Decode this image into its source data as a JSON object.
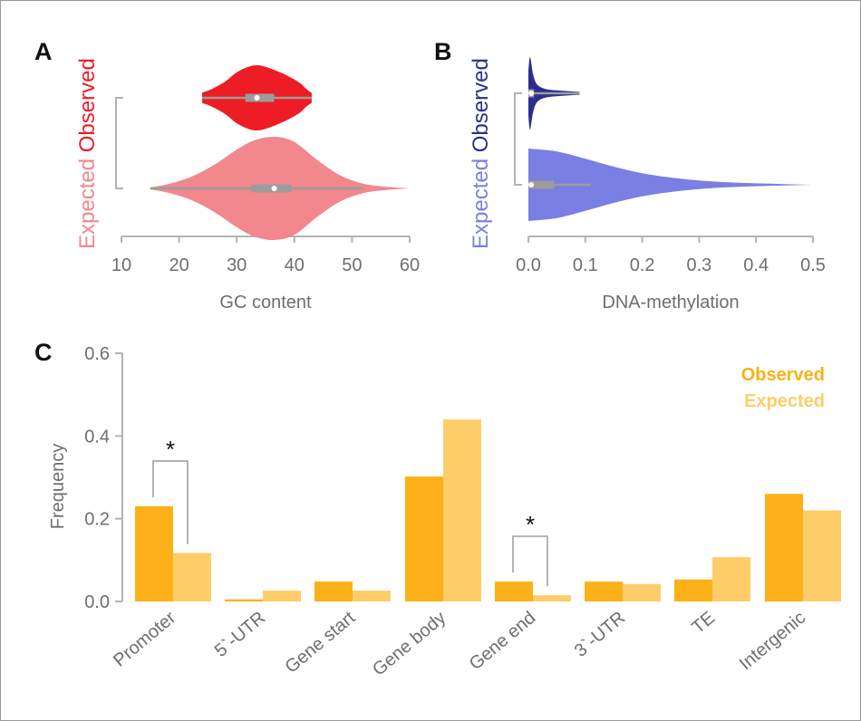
{
  "panels": {
    "a": {
      "letter": "A"
    },
    "b": {
      "letter": "B"
    },
    "c": {
      "letter": "C"
    }
  },
  "colors": {
    "observed_gc": "#ee1c25",
    "expected_gc": "#f2878e",
    "observed_meth": "#2b2f8c",
    "expected_meth": "#7a7fe3",
    "observed_bar": "#fbb117",
    "expected_bar": "#fecd6a",
    "axis": "#b3b3b3",
    "box": "#9c9c9c"
  },
  "chart_data": [
    {
      "type": "violin",
      "panel": "A",
      "xlabel": "GC content",
      "xlim": [
        10,
        60
      ],
      "xticks": [
        10,
        20,
        30,
        40,
        50,
        60
      ],
      "series": [
        {
          "name": "Observed",
          "min": 24,
          "q1": 31.5,
          "median": 33.5,
          "q3": 36.5,
          "max": 43,
          "color": "#ee1c25",
          "density": [
            [
              24,
              0.16
            ],
            [
              25,
              0.22
            ],
            [
              26,
              0.3
            ],
            [
              28,
              0.5
            ],
            [
              30,
              0.78
            ],
            [
              32,
              0.95
            ],
            [
              33.5,
              1.0
            ],
            [
              35,
              0.95
            ],
            [
              37,
              0.82
            ],
            [
              39,
              0.66
            ],
            [
              41,
              0.45
            ],
            [
              42,
              0.28
            ],
            [
              43,
              0.15
            ]
          ]
        },
        {
          "name": "Expected",
          "min": 15,
          "q1": 32.5,
          "median": 36.5,
          "q3": 39.5,
          "max": 52,
          "color": "#f2878e",
          "density": [
            [
              15,
              0.02
            ],
            [
              18,
              0.08
            ],
            [
              22,
              0.22
            ],
            [
              26,
              0.45
            ],
            [
              30,
              0.75
            ],
            [
              33,
              0.93
            ],
            [
              36.5,
              1.0
            ],
            [
              40,
              0.9
            ],
            [
              44,
              0.55
            ],
            [
              48,
              0.25
            ],
            [
              52,
              0.09
            ],
            [
              56,
              0.03
            ],
            [
              60,
              0.0
            ]
          ]
        }
      ]
    },
    {
      "type": "violin",
      "panel": "B",
      "xlabel": "DNA-methylation",
      "xlim": [
        0.0,
        0.5
      ],
      "xticks": [
        "0.0",
        "0.1",
        "0.2",
        "0.3",
        "0.4",
        "0.5"
      ],
      "series": [
        {
          "name": "Observed",
          "min": 0.0,
          "q1": 0.0,
          "median": 0.005,
          "q3": 0.01,
          "max": 0.09,
          "color": "#2b2f8c",
          "density": [
            [
              0.0,
              0.62
            ],
            [
              0.003,
              1.0
            ],
            [
              0.008,
              0.55
            ],
            [
              0.015,
              0.25
            ],
            [
              0.03,
              0.12
            ],
            [
              0.05,
              0.08
            ],
            [
              0.07,
              0.06
            ],
            [
              0.09,
              0.04
            ]
          ]
        },
        {
          "name": "Expected",
          "min": 0.0,
          "q1": 0.0,
          "median": 0.005,
          "q3": 0.045,
          "max": 0.11,
          "color": "#7a7fe3",
          "density": [
            [
              0.0,
              1.0
            ],
            [
              0.05,
              0.92
            ],
            [
              0.1,
              0.72
            ],
            [
              0.15,
              0.5
            ],
            [
              0.2,
              0.32
            ],
            [
              0.25,
              0.2
            ],
            [
              0.3,
              0.12
            ],
            [
              0.35,
              0.07
            ],
            [
              0.4,
              0.04
            ],
            [
              0.45,
              0.02
            ],
            [
              0.5,
              0.0
            ]
          ]
        }
      ]
    },
    {
      "type": "bar",
      "panel": "C",
      "ylabel": "Frequency",
      "ylim": [
        0.0,
        0.6
      ],
      "yticks": [
        "0.0",
        "0.2",
        "0.4",
        "0.6"
      ],
      "categories": [
        "Promoter",
        "5`-UTR",
        "Gene start",
        "Gene body",
        "Gene end",
        "3`-UTR",
        "TE",
        "Intergenic"
      ],
      "series": [
        {
          "name": "Observed",
          "values": [
            0.23,
            0.005,
            0.048,
            0.302,
            0.048,
            0.048,
            0.053,
            0.26
          ],
          "color": "#fbb117"
        },
        {
          "name": "Expected",
          "values": [
            0.117,
            0.026,
            0.026,
            0.44,
            0.015,
            0.042,
            0.107,
            0.22
          ],
          "color": "#fecd6a"
        }
      ],
      "significance": [
        {
          "category": "Promoter",
          "label": "*"
        },
        {
          "category": "Gene end",
          "label": "*"
        }
      ],
      "legend": [
        "Observed",
        "Expected"
      ],
      "legend_position": "top-right"
    }
  ]
}
